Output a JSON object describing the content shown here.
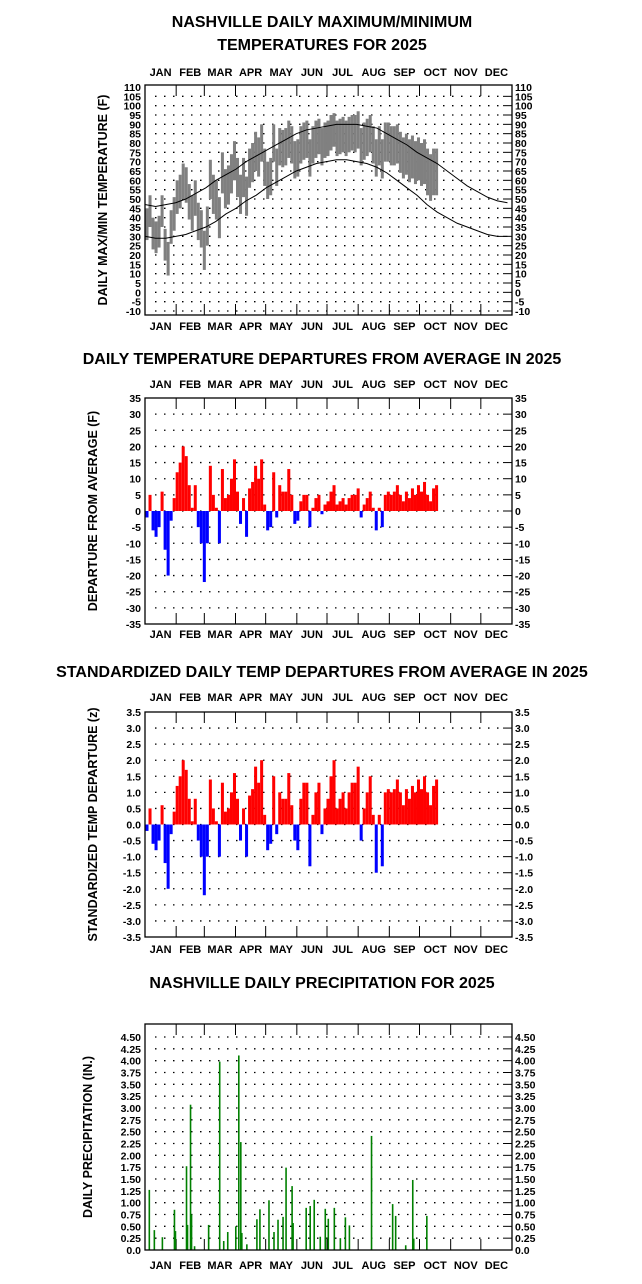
{
  "chart_data": [
    {
      "type": "line",
      "title_lines": [
        "NASHVILLE DAILY MAXIMUM/MINIMUM",
        "TEMPERATURES FOR 2025"
      ],
      "ylabel": "DAILY MAX/MIN TEMPERATURE (F)",
      "xlabel": "",
      "ylim": [
        -10,
        110
      ],
      "yticks": [
        "110",
        "105",
        "100",
        "95",
        "90",
        "85",
        "80",
        "75",
        "70",
        "65",
        "60",
        "55",
        "50",
        "45",
        "40",
        "35",
        "30",
        "25",
        "20",
        "15",
        "10",
        "5",
        "0",
        "-5",
        "-10"
      ],
      "months": [
        "JAN",
        "FEB",
        "MAR",
        "APR",
        "MAY",
        "JUN",
        "JUL",
        "AUG",
        "SEP",
        "OCT",
        "NOV",
        "DEC"
      ],
      "grid": true,
      "normals": {
        "start_day": 1,
        "step_days": 10,
        "high": [
          47,
          46,
          47,
          48,
          50,
          53,
          56,
          60,
          63,
          66,
          70,
          73,
          76,
          79,
          82,
          85,
          87,
          88,
          89,
          90,
          90,
          90,
          89,
          88,
          85,
          82,
          79,
          75,
          72,
          69,
          65,
          61,
          57,
          54,
          51,
          49,
          48
        ],
        "low": [
          30,
          29,
          29,
          30,
          31,
          33,
          35,
          38,
          42,
          45,
          49,
          52,
          56,
          59,
          62,
          65,
          67,
          69,
          70,
          71,
          71,
          70,
          69,
          67,
          64,
          60,
          56,
          52,
          47,
          43,
          40,
          37,
          35,
          33,
          31,
          30,
          30
        ]
      },
      "observed": {
        "start_day": 1,
        "step_days": 3,
        "high": [
          45,
          52,
          40,
          38,
          41,
          52,
          34,
          27,
          44,
          51,
          60,
          63,
          69,
          67,
          58,
          52,
          60,
          48,
          44,
          33,
          46,
          71,
          63,
          60,
          51,
          75,
          66,
          68,
          74,
          81,
          72,
          63,
          72,
          62,
          77,
          80,
          86,
          83,
          90,
          77,
          70,
          72,
          90,
          77,
          88,
          87,
          88,
          92,
          89,
          81,
          82,
          89,
          91,
          92,
          82,
          89,
          92,
          93,
          88,
          91,
          92,
          95,
          96,
          92,
          93,
          94,
          92,
          94,
          95,
          95,
          97,
          88,
          91,
          93,
          95,
          89,
          82,
          89,
          82,
          91,
          91,
          89,
          89,
          90,
          86,
          83,
          85,
          82,
          84,
          81,
          83,
          80,
          82,
          77,
          74,
          77,
          77
        ],
        "low": [
          28,
          35,
          23,
          21,
          24,
          35,
          17,
          9,
          26,
          33,
          42,
          45,
          50,
          48,
          39,
          33,
          41,
          28,
          24,
          12,
          25,
          50,
          42,
          39,
          29,
          53,
          45,
          47,
          53,
          60,
          51,
          42,
          51,
          41,
          56,
          59,
          65,
          62,
          70,
          57,
          50,
          52,
          70,
          57,
          68,
          67,
          68,
          72,
          69,
          61,
          62,
          69,
          71,
          72,
          62,
          69,
          72,
          74,
          68,
          72,
          73,
          76,
          78,
          73,
          74,
          75,
          73,
          75,
          76,
          75,
          77,
          68,
          71,
          73,
          75,
          69,
          62,
          68,
          61,
          70,
          70,
          68,
          68,
          69,
          64,
          61,
          63,
          59,
          61,
          58,
          60,
          57,
          58,
          52,
          49,
          52,
          52
        ]
      },
      "colors": {
        "observed": "#808080",
        "normals": "#000000"
      }
    },
    {
      "type": "bar",
      "title_lines": [
        "DAILY TEMPERATURE DEPARTURES FROM AVERAGE IN 2025"
      ],
      "ylabel": "DEPARTURE FROM AVERAGE (F)",
      "xlabel": "",
      "ylim": [
        -35,
        35
      ],
      "yticks": [
        "35",
        "30",
        "25",
        "20",
        "15",
        "10",
        "5",
        "0",
        "-5",
        "-10",
        "-15",
        "-20",
        "-25",
        "-30",
        "-35"
      ],
      "months": [
        "JAN",
        "FEB",
        "MAR",
        "APR",
        "MAY",
        "JUN",
        "JUL",
        "AUG",
        "SEP",
        "OCT",
        "NOV",
        "DEC"
      ],
      "grid": true,
      "start_day": 1,
      "step_days": 3,
      "values": [
        -2,
        5,
        -6,
        -8,
        -5,
        6,
        -12,
        -20,
        -3,
        4,
        12,
        15,
        20,
        17,
        8,
        1,
        8,
        -5,
        -10,
        -22,
        -10,
        14,
        5,
        1,
        -10,
        13,
        4,
        5,
        10,
        16,
        6,
        -4,
        4,
        -8,
        7,
        9,
        14,
        10,
        16,
        2,
        -6,
        -5,
        12,
        -2,
        8,
        6,
        6,
        13,
        5,
        -4,
        -3,
        3,
        5,
        5,
        -5,
        1,
        4,
        5,
        -1,
        2,
        3,
        6,
        8,
        2,
        3,
        4,
        2,
        4,
        5,
        5,
        7,
        -2,
        2,
        4,
        6,
        1,
        -6,
        1,
        -5,
        5,
        6,
        5,
        6,
        8,
        5,
        3,
        6,
        4,
        7,
        5,
        8,
        6,
        9,
        5,
        3,
        7,
        8
      ],
      "colors": {
        "positive": "#ff0000",
        "negative": "#0000ff"
      }
    },
    {
      "type": "bar",
      "title_lines": [
        "STANDARDIZED DAILY TEMP DEPARTURES FROM AVERAGE IN 2025"
      ],
      "ylabel": "STANDARDIZED TEMP DEPARTURE (z)",
      "xlabel": "",
      "ylim": [
        -3.5,
        3.5
      ],
      "yticks": [
        "3.5",
        "3.0",
        "2.5",
        "2.0",
        "1.5",
        "1.0",
        "0.5",
        "0.0",
        "-0.5",
        "-1.0",
        "-1.5",
        "-2.0",
        "-2.5",
        "-3.0",
        "-3.5"
      ],
      "months": [
        "JAN",
        "FEB",
        "MAR",
        "APR",
        "MAY",
        "JUN",
        "JUL",
        "AUG",
        "SEP",
        "OCT",
        "NOV",
        "DEC"
      ],
      "grid": true,
      "start_day": 1,
      "step_days": 3,
      "values": [
        -0.2,
        0.5,
        -0.6,
        -0.8,
        -0.5,
        0.6,
        -1.2,
        -2.0,
        -0.3,
        0.4,
        1.2,
        1.5,
        2.0,
        1.7,
        0.8,
        0.1,
        0.8,
        -0.5,
        -1.0,
        -2.2,
        -1.0,
        1.4,
        0.5,
        0.1,
        -1.0,
        1.3,
        0.4,
        0.5,
        1.0,
        1.6,
        0.8,
        -0.5,
        0.5,
        -1.0,
        0.9,
        1.1,
        1.8,
        1.3,
        2.0,
        0.3,
        -0.8,
        -0.6,
        1.5,
        -0.3,
        1.0,
        0.8,
        0.8,
        1.6,
        0.6,
        -0.5,
        -0.8,
        0.8,
        1.3,
        1.3,
        -1.3,
        0.3,
        1.0,
        1.3,
        -0.3,
        0.5,
        0.8,
        1.5,
        2.0,
        0.5,
        0.8,
        1.0,
        0.5,
        1.0,
        1.3,
        1.3,
        1.8,
        -0.5,
        0.5,
        1.0,
        1.5,
        0.3,
        -1.5,
        0.3,
        -1.3,
        1.0,
        1.1,
        1.0,
        1.1,
        1.4,
        1.0,
        0.6,
        1.1,
        0.8,
        1.2,
        1.0,
        1.4,
        1.1,
        1.5,
        1.0,
        0.6,
        1.2,
        1.4
      ],
      "colors": {
        "positive": "#ff0000",
        "negative": "#0000ff"
      }
    },
    {
      "type": "bar",
      "title_lines": [
        "NASHVILLE DAILY PRECIPITATION FOR 2025"
      ],
      "ylabel": "DAILY PRECIPITATION (IN.)",
      "xlabel": "",
      "ylim": [
        0,
        4.5
      ],
      "yticks": [
        "4.50",
        "4.25",
        "4.00",
        "3.75",
        "3.50",
        "3.25",
        "3.00",
        "2.75",
        "2.50",
        "2.25",
        "2.00",
        "1.75",
        "1.50",
        "1.25",
        "1.00",
        "0.75",
        "0.50",
        "0.25",
        "0.0"
      ],
      "months": [
        "JAN",
        "FEB",
        "MAR",
        "APR",
        "MAY",
        "JUN",
        "JUL",
        "AUG",
        "SEP",
        "OCT",
        "NOV",
        "DEC"
      ],
      "grid": true,
      "points": [
        [
          4,
          1.27
        ],
        [
          9,
          0.42
        ],
        [
          17,
          0.27
        ],
        [
          29,
          0.85
        ],
        [
          30,
          0.4
        ],
        [
          41,
          1.77
        ],
        [
          42,
          0.53
        ],
        [
          45,
          3.07
        ],
        [
          46,
          0.75
        ],
        [
          49,
          0.08
        ],
        [
          63,
          0.53
        ],
        [
          74,
          3.98
        ],
        [
          78,
          0.19
        ],
        [
          82,
          0.38
        ],
        [
          90,
          0.5
        ],
        [
          93,
          4.11
        ],
        [
          95,
          2.28
        ],
        [
          96,
          0.36
        ],
        [
          101,
          0.12
        ],
        [
          111,
          0.65
        ],
        [
          114,
          0.86
        ],
        [
          123,
          1.05
        ],
        [
          128,
          0.38
        ],
        [
          132,
          0.64
        ],
        [
          137,
          0.7
        ],
        [
          140,
          1.74
        ],
        [
          146,
          1.35
        ],
        [
          147,
          0.57
        ],
        [
          160,
          0.89
        ],
        [
          164,
          0.93
        ],
        [
          168,
          1.06
        ],
        [
          174,
          0.28
        ],
        [
          179,
          0.87
        ],
        [
          182,
          0.66
        ],
        [
          188,
          0.89
        ],
        [
          194,
          0.25
        ],
        [
          199,
          0.69
        ],
        [
          203,
          0.52
        ],
        [
          225,
          2.41
        ],
        [
          246,
          0.97
        ],
        [
          249,
          0.72
        ],
        [
          259,
          0.1
        ],
        [
          266,
          1.48
        ],
        [
          267,
          0.24
        ],
        [
          280,
          0.72
        ]
      ],
      "colors": {
        "bars": "#008000"
      }
    }
  ]
}
